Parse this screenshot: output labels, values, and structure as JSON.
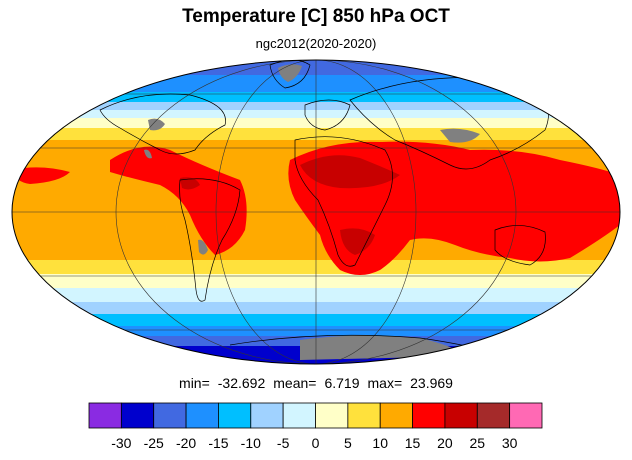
{
  "title": "Temperature [C] 850 hPa OCT",
  "subtitle": "ngc2012(2020-2020)",
  "stats": {
    "min_label": "min=",
    "min_value": "-32.692",
    "mean_label": "mean=",
    "mean_value": "6.719",
    "max_label": "max=",
    "max_value": "23.969"
  },
  "colorbar": {
    "colors": [
      "#8a2be2",
      "#0000cd",
      "#4169e1",
      "#1e90ff",
      "#00bfff",
      "#a0d2ff",
      "#d2f5ff",
      "#ffffc8",
      "#ffe13c",
      "#ffaa00",
      "#ff0000",
      "#c80000",
      "#a52a2a",
      "#ff69b4"
    ],
    "ticks": [
      "-30",
      "-25",
      "-20",
      "-15",
      "-10",
      "-5",
      "0",
      "5",
      "10",
      "15",
      "20",
      "25",
      "30"
    ]
  },
  "palette": {
    "missing": "#808080",
    "land_outline": "#000000"
  }
}
